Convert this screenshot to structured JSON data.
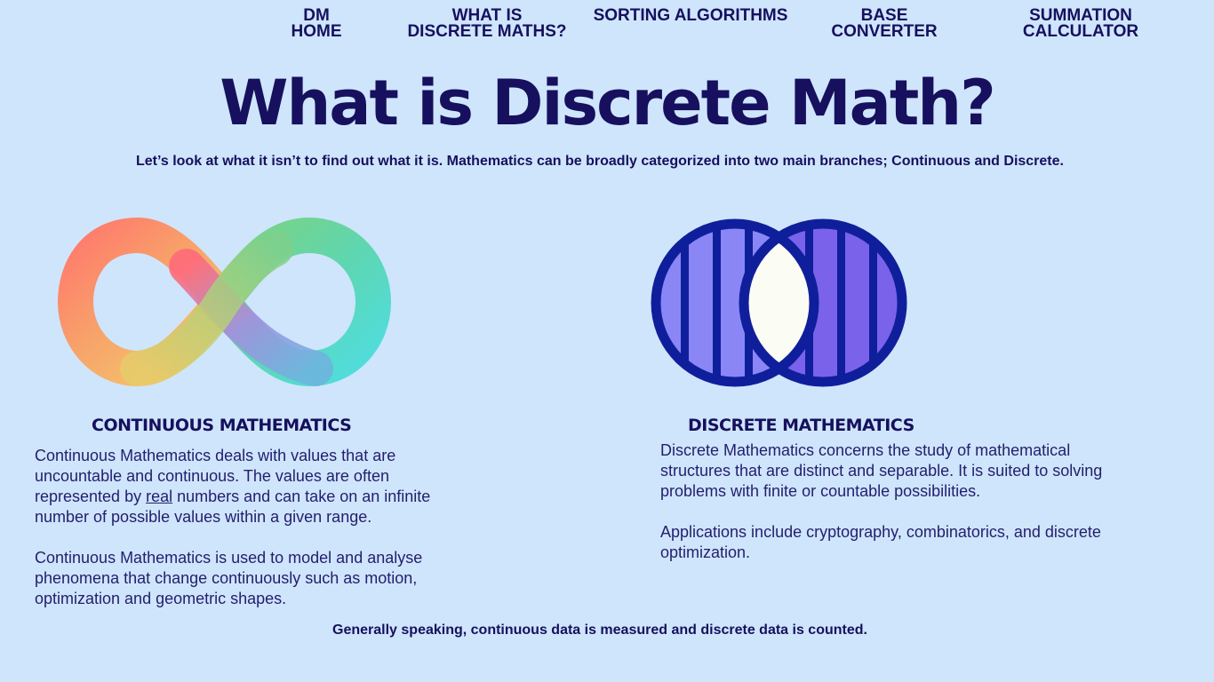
{
  "nav": {
    "dm_home": [
      "DM",
      "HOME"
    ],
    "what_is": [
      "WHAT IS",
      "DISCRETE MATHS?"
    ],
    "sorting": [
      "SORTING ALGORITHMS"
    ],
    "base_converter": [
      "BASE",
      "CONVERTER"
    ],
    "summation": [
      "SUMMATION",
      "CALCULATOR"
    ]
  },
  "title": "What is Discrete Math?",
  "intro": "Let’s look at what it isn’t to find out what it is. Mathematics can be broadly categorized into two main branches; Continuous and Discrete.",
  "continuous": {
    "heading": "CONTINUOUS MATHEMATICS",
    "p1_before": "Continuous Mathematics deals with values that are uncountable and continuous. The values are often represented by ",
    "p1_link": "real",
    "p1_after": " numbers and can take on an infinite number of possible values within a given range.",
    "p2": "Continuous Mathematics is used to model and analyse phenomena that change continuously such as motion, optimization and geometric shapes.",
    "icon": "infinity-icon"
  },
  "discrete": {
    "heading": "DISCRETE MATHEMATICS",
    "p1": "Discrete Mathematics concerns the study of mathematical structures that are distinct and separable. It is suited to solving problems with finite or countable possibilities.",
    "p2": "Applications include cryptography, combinatorics, and discrete optimization.",
    "icon": "venn-diagram-icon"
  },
  "closing": "Generally speaking, continuous data is measured and discrete data is counted.",
  "colors": {
    "background": "#cfe5fb",
    "text": "#16105e",
    "venn_outline": "#0f1f9c",
    "venn_left": "#8a86f5",
    "venn_right": "#7a62ea",
    "venn_center": "#fbfcf4"
  }
}
